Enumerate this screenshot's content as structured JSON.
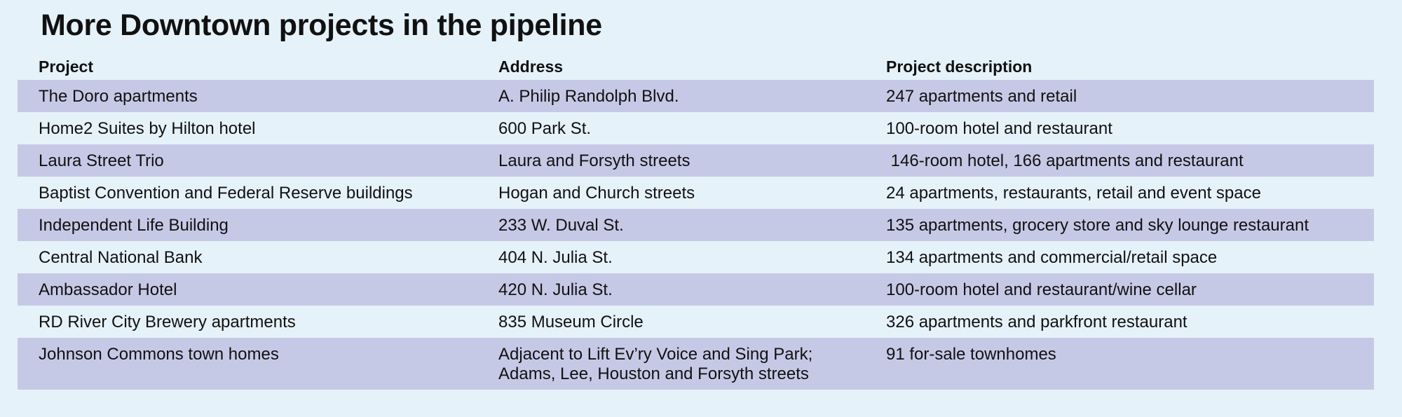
{
  "title": "More Downtown projects in the pipeline",
  "columns": {
    "project": "Project",
    "address": "Address",
    "description": "Project description"
  },
  "rows": [
    {
      "project": "The Doro apartments",
      "address": "A. Philip Randolph Blvd.",
      "description": "247 apartments and retail"
    },
    {
      "project": "Home2 Suites by Hilton hotel",
      "address": "600 Park St.",
      "description": "100-room hotel and restaurant"
    },
    {
      "project": "Laura Street Trio",
      "address": "Laura and Forsyth streets",
      "description": " 146-room hotel, 166 apartments and restaurant"
    },
    {
      "project": "Baptist Convention and Federal Reserve buildings",
      "address": "Hogan and Church streets",
      "description": "24 apartments, restaurants, retail and event space"
    },
    {
      "project": "Independent Life Building",
      "address": "233 W. Duval St.",
      "description": "135 apartments, grocery store and sky lounge restaurant"
    },
    {
      "project": "Central National Bank",
      "address": "404 N. Julia St.",
      "description": "134 apartments and commercial/retail space"
    },
    {
      "project": "Ambassador Hotel",
      "address": "420 N. Julia St.",
      "description": "100-room hotel and restaurant/wine cellar"
    },
    {
      "project": "RD River City Brewery apartments",
      "address": "835 Museum Circle",
      "description": "326 apartments and parkfront restaurant"
    },
    {
      "project": "Johnson Commons town homes",
      "address": "Adjacent to Lift Ev’ry Voice and Sing Park;",
      "address_line2": "Adams, Lee, Houston and Forsyth streets",
      "description": "91 for-sale townhomes"
    }
  ],
  "colors": {
    "background": "#e6f2f9",
    "row_shade": "#c6c9e6",
    "text": "#111111"
  }
}
